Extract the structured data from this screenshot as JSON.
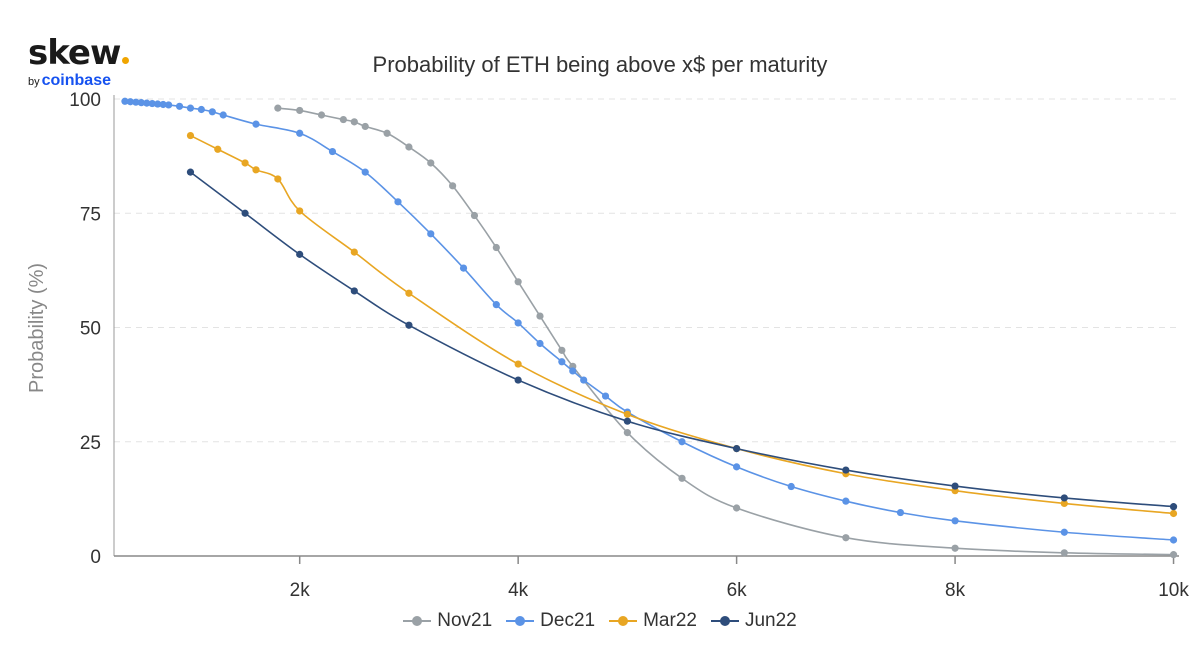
{
  "logo": {
    "word": "skew",
    "by": "by",
    "brand": "coinbase"
  },
  "chart_data": {
    "type": "line",
    "title": "Probability of ETH being above x$ per maturity",
    "xlabel": "",
    "ylabel": "Probability (%)",
    "xlim": [
      300,
      10050
    ],
    "ylim": [
      0,
      100
    ],
    "x_ticks": [
      2000,
      4000,
      6000,
      8000,
      10000
    ],
    "x_tick_labels": [
      "2k",
      "4k",
      "6k",
      "8k",
      "10k"
    ],
    "y_ticks": [
      0,
      25,
      50,
      75,
      100
    ],
    "y_tick_labels": [
      "0",
      "25",
      "50",
      "75",
      "100"
    ],
    "grid": {
      "horizontal": true,
      "vertical": false,
      "style": "dashed"
    },
    "legend": "bottom",
    "series": [
      {
        "name": "Nov21",
        "color": "#9aa1a6",
        "x": [
          1800,
          2000,
          2200,
          2400,
          2500,
          2600,
          2800,
          3000,
          3200,
          3400,
          3600,
          3800,
          4000,
          4200,
          4400,
          4500,
          5000,
          5500,
          6000,
          7000,
          8000,
          9000,
          10000
        ],
        "y": [
          98,
          97.5,
          96.5,
          95.5,
          95,
          94,
          92.5,
          89.5,
          86,
          81,
          74.5,
          67.5,
          60,
          52.5,
          45,
          41.5,
          27,
          17,
          10.5,
          4,
          1.7,
          0.7,
          0.3
        ]
      },
      {
        "name": "Dec21",
        "color": "#5b93e6",
        "x": [
          400,
          450,
          500,
          550,
          600,
          650,
          700,
          750,
          800,
          900,
          1000,
          1100,
          1200,
          1300,
          1600,
          2000,
          2300,
          2600,
          2900,
          3200,
          3500,
          3800,
          4000,
          4200,
          4400,
          4500,
          4600,
          4800,
          5000,
          5500,
          6000,
          6500,
          7000,
          7500,
          8000,
          9000,
          10000
        ],
        "y": [
          99.5,
          99.4,
          99.3,
          99.2,
          99.1,
          99,
          98.9,
          98.8,
          98.7,
          98.4,
          98,
          97.7,
          97.2,
          96.5,
          94.5,
          92.5,
          88.5,
          84,
          77.5,
          70.5,
          63,
          55,
          51,
          46.5,
          42.5,
          40.5,
          38.5,
          35,
          31.5,
          25,
          19.5,
          15.2,
          12,
          9.5,
          7.7,
          5.2,
          3.5
        ]
      },
      {
        "name": "Mar22",
        "color": "#e8a623",
        "x": [
          1000,
          1250,
          1500,
          1600,
          1800,
          2000,
          2500,
          3000,
          4000,
          5000,
          6000,
          7000,
          8000,
          9000,
          10000
        ],
        "y": [
          92,
          89,
          86,
          84.5,
          82.5,
          75.5,
          66.5,
          57.5,
          42,
          31,
          23.5,
          18,
          14.3,
          11.5,
          9.3
        ]
      },
      {
        "name": "Jun22",
        "color": "#2e4d7b",
        "x": [
          1000,
          1500,
          2000,
          2500,
          3000,
          4000,
          5000,
          6000,
          7000,
          8000,
          9000,
          10000
        ],
        "y": [
          84,
          75,
          66,
          58,
          50.5,
          38.5,
          29.5,
          23.5,
          18.8,
          15.3,
          12.7,
          10.8
        ]
      }
    ]
  }
}
